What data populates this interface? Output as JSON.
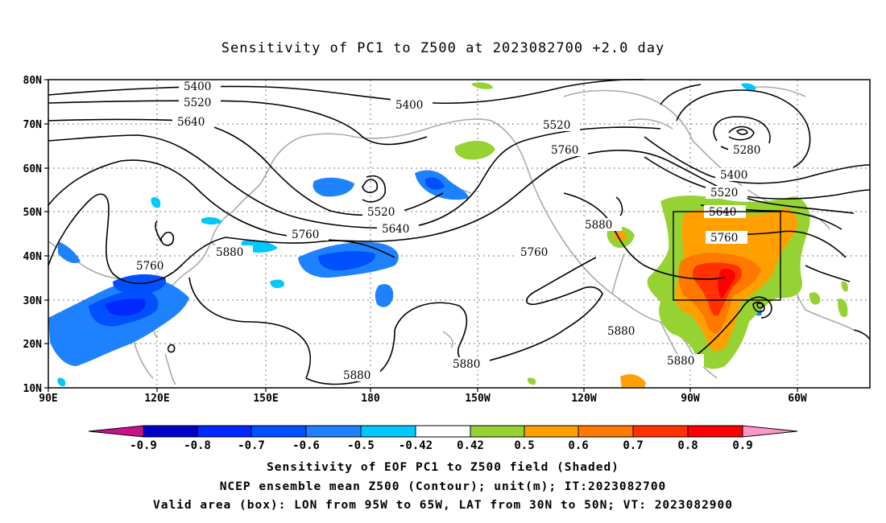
{
  "title": "Sensitivity of PC1 to Z500 at 2023082700 +2.0 day",
  "map": {
    "lon_labels": [
      "90E",
      "120E",
      "150E",
      "180",
      "150W",
      "120W",
      "90W",
      "60W"
    ],
    "lat_labels": [
      "80N",
      "70N",
      "60N",
      "50N",
      "40N",
      "30N",
      "20N",
      "10N"
    ],
    "contour_labels": [
      "5400",
      "5520",
      "5640",
      "5400",
      "5520",
      "5760",
      "5280",
      "5400",
      "5520",
      "5640",
      "5760",
      "5520",
      "5640",
      "5760",
      "5880",
      "5760",
      "5880",
      "5760",
      "5880",
      "5880",
      "5880",
      "5880"
    ],
    "colors": {
      "land_outline": "#aaaaaa",
      "contour": "#000000",
      "grid": "#777777"
    }
  },
  "colorbar": {
    "labels": [
      "-0.9",
      "-0.8",
      "-0.7",
      "-0.6",
      "-0.5",
      "-0.42",
      "0.42",
      "0.5",
      "0.6",
      "0.7",
      "0.8",
      "0.9"
    ],
    "colors": [
      "#c8108a",
      "#0000c8",
      "#0028ff",
      "#0050ff",
      "#1e82ff",
      "#00c8ff",
      "#ffffff",
      "#96d232",
      "#ffa000",
      "#ff7800",
      "#ff3200",
      "#ff0000",
      "#ff96c8"
    ]
  },
  "footer": {
    "line1": "Sensitivity of EOF PC1 to Z500 field (Shaded)",
    "line2": "NCEP ensemble mean Z500 (Contour); unit(m); IT:2023082700",
    "line3": "Valid area (box): LON from 95W to 65W, LAT from 30N to 50N; VT: 2023082900"
  }
}
